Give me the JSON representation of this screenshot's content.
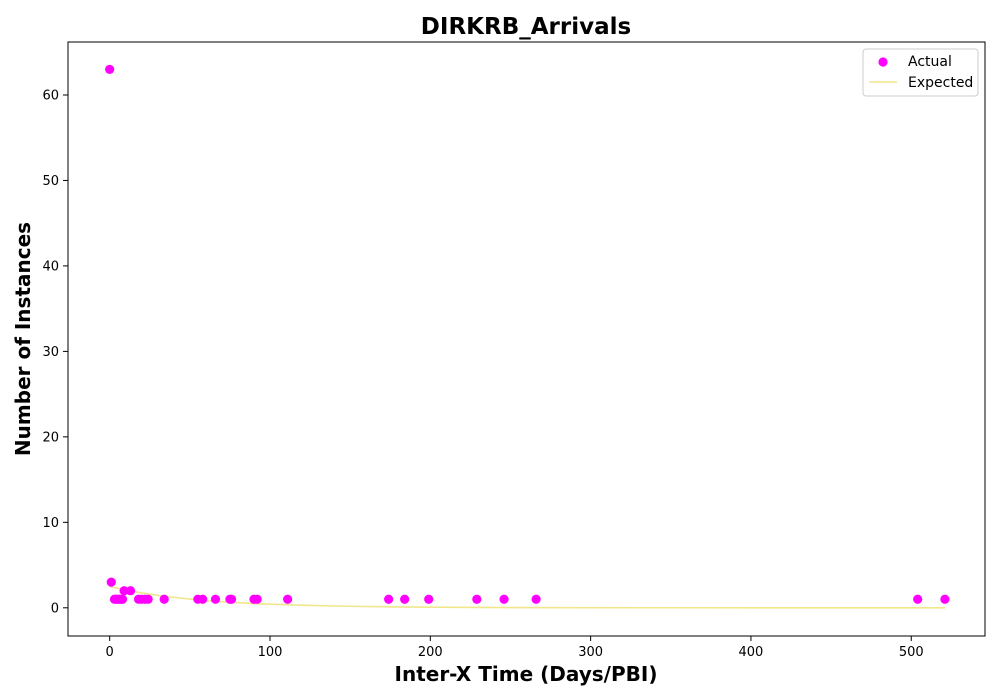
{
  "chart_data": {
    "type": "scatter",
    "title": "DIRKRB_Arrivals",
    "xlabel": "Inter-X Time (Days/PBI)",
    "ylabel": "Number of Instances",
    "xlim": [
      -26,
      546
    ],
    "ylim": [
      -3.3,
      66.2
    ],
    "xticks": [
      0,
      100,
      200,
      300,
      400,
      500
    ],
    "yticks": [
      0,
      10,
      20,
      30,
      40,
      50,
      60
    ],
    "grid": false,
    "legend_position": "top-right",
    "series": [
      {
        "name": "Actual",
        "kind": "scatter",
        "color": "#ff00ff",
        "points": [
          [
            0,
            63
          ],
          [
            1,
            3
          ],
          [
            3,
            1
          ],
          [
            4,
            1
          ],
          [
            5,
            1
          ],
          [
            6,
            1
          ],
          [
            7,
            1
          ],
          [
            8,
            1
          ],
          [
            9,
            2
          ],
          [
            13,
            2
          ],
          [
            18,
            1
          ],
          [
            20,
            1
          ],
          [
            22,
            1
          ],
          [
            24,
            1
          ],
          [
            34,
            1
          ],
          [
            55,
            1
          ],
          [
            58,
            1
          ],
          [
            66,
            1
          ],
          [
            75,
            1
          ],
          [
            76,
            1
          ],
          [
            90,
            1
          ],
          [
            92,
            1
          ],
          [
            111,
            1
          ],
          [
            174,
            1
          ],
          [
            184,
            1
          ],
          [
            199,
            1
          ],
          [
            229,
            1
          ],
          [
            246,
            1
          ],
          [
            266,
            1
          ],
          [
            504,
            1
          ],
          [
            521,
            1
          ]
        ]
      },
      {
        "name": "Expected",
        "kind": "line",
        "color": "#f0e68c",
        "x": [
          0,
          10,
          20,
          30,
          40,
          50,
          60,
          70,
          80,
          90,
          100,
          120,
          140,
          160,
          180,
          200,
          250,
          300,
          350,
          400,
          450,
          500,
          521
        ],
        "y": [
          2.48,
          2.08,
          1.74,
          1.46,
          1.22,
          1.02,
          0.86,
          0.72,
          0.6,
          0.5,
          0.42,
          0.3,
          0.21,
          0.15,
          0.1,
          0.07,
          0.03,
          0.01,
          0.004,
          0.001,
          0.0005,
          0.0002,
          0.0001
        ]
      }
    ]
  }
}
